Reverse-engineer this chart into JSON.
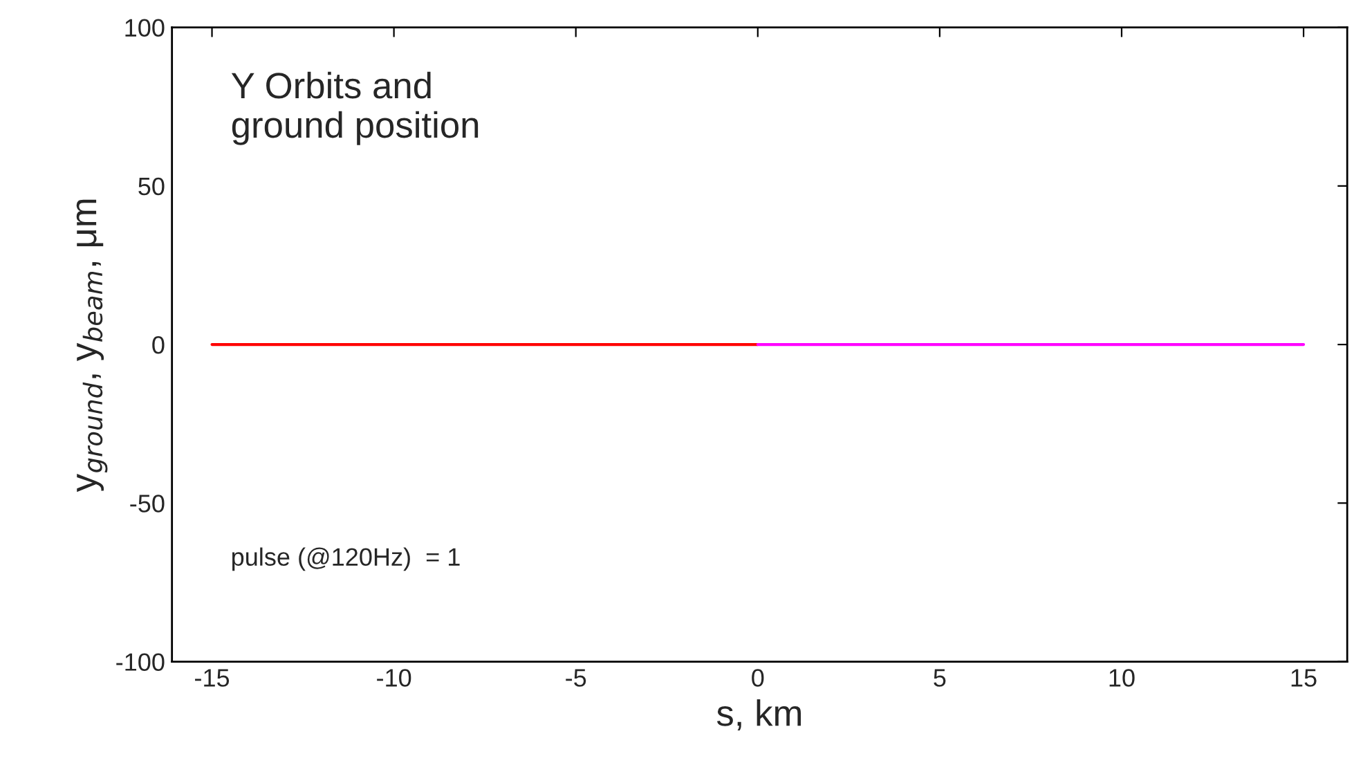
{
  "chart_data": {
    "type": "line",
    "xlabel": "s, km",
    "ylabel": "y$_{ground}$, y$_{beam}$, μm",
    "annotations": [
      "Y Orbits and\nground position",
      "pulse (@120Hz)  = 1"
    ],
    "series": [
      {
        "x": [
          -15,
          0
        ],
        "values": [
          0,
          0
        ],
        "color": "#ff0000"
      },
      {
        "x": [
          0,
          15
        ],
        "values": [
          0,
          0
        ],
        "color": "#ff00ff"
      }
    ],
    "xlim": [
      -16.1,
      16.2
    ],
    "xticks": [
      -15,
      -10,
      -5,
      0,
      5,
      10,
      15
    ],
    "ylim": [
      -100,
      100
    ],
    "yticks": [
      -100,
      -50,
      0,
      50,
      100
    ],
    "grid": false,
    "legend": false,
    "marker": "none",
    "line_style": "solid"
  }
}
